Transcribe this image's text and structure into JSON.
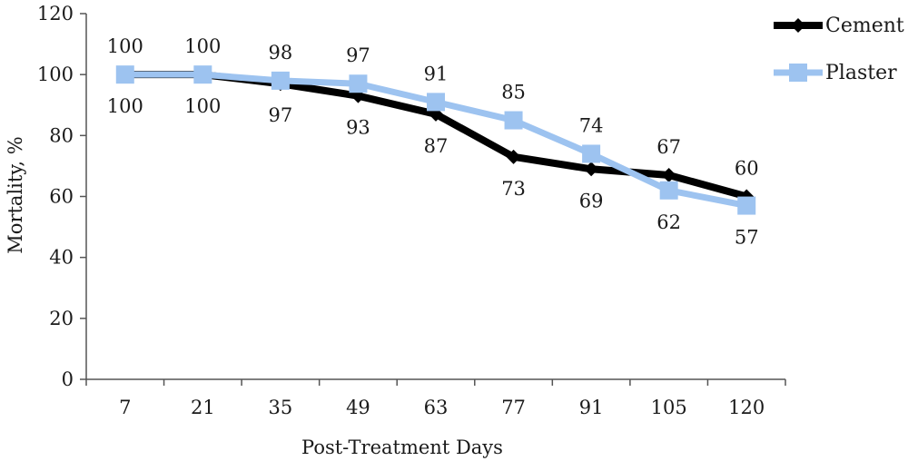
{
  "chart_data": {
    "type": "line",
    "title": "",
    "xlabel": "Post-Treatment Days",
    "ylabel": "Mortality, %",
    "categories": [
      "7",
      "21",
      "35",
      "49",
      "63",
      "77",
      "91",
      "105",
      "120"
    ],
    "ylim": [
      0,
      120
    ],
    "yticks": [
      "0",
      "20",
      "40",
      "60",
      "80",
      "100",
      "120"
    ],
    "grid": false,
    "legend_position": "top-right",
    "series": [
      {
        "name": "Cement",
        "values": [
          100,
          100,
          97,
          93,
          87,
          73,
          69,
          67,
          60
        ],
        "labels": [
          "100",
          "100",
          "97",
          "93",
          "87",
          "73",
          "69",
          "67",
          "60"
        ],
        "color": "#000000",
        "marker": "diamond"
      },
      {
        "name": "Plaster",
        "values": [
          100,
          100,
          98,
          97,
          91,
          85,
          74,
          62,
          57
        ],
        "labels": [
          "100",
          "100",
          "98",
          "97",
          "91",
          "85",
          "74",
          "62",
          "57"
        ],
        "color": "#9dc3f0",
        "marker": "square"
      }
    ]
  }
}
